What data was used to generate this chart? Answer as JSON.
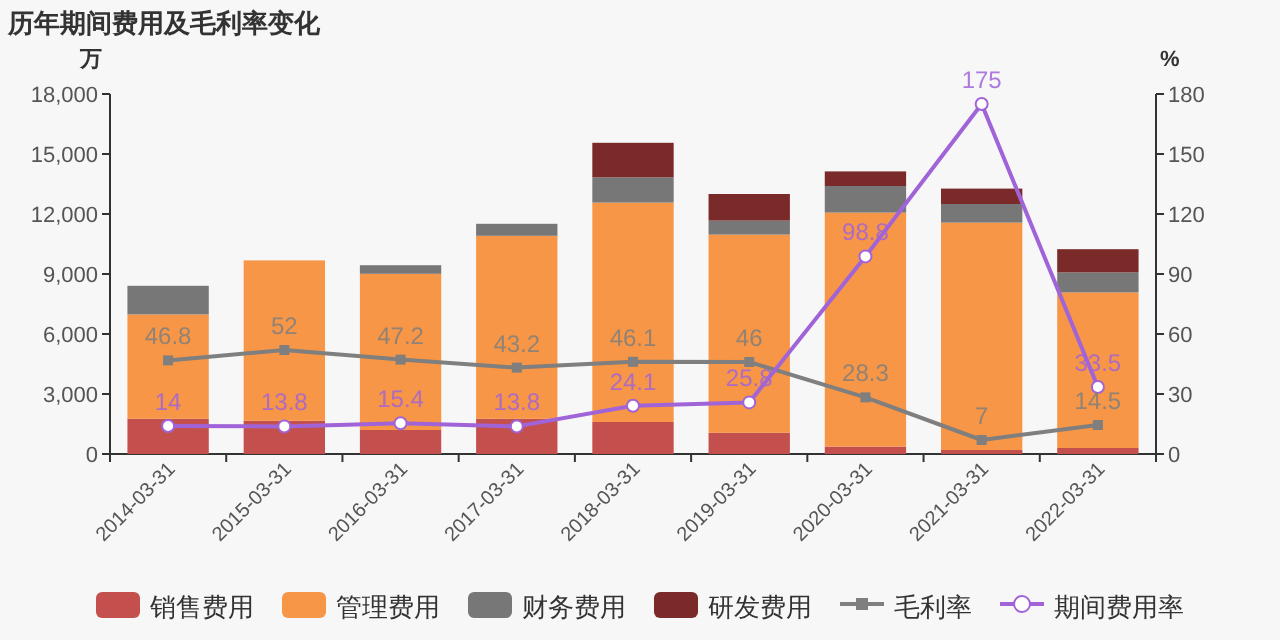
{
  "chart_data": {
    "type": "bar",
    "title": "历年期间费用及毛利率变化",
    "stacked": true,
    "legend": "bottom",
    "ylabel": "万",
    "y2label": "%",
    "categories": [
      "2014-03-31",
      "2015-03-31",
      "2016-03-31",
      "2017-03-31",
      "2018-03-31",
      "2019-03-31",
      "2020-03-31",
      "2021-03-31",
      "2022-03-31"
    ],
    "ylim": [
      0,
      18000
    ],
    "yticks": [
      0,
      {
        "value": 3000,
        "label": "3,000"
      },
      {
        "value": 6000,
        "label": "6,000"
      },
      {
        "value": 9000,
        "label": "9,000"
      },
      {
        "value": 12000,
        "label": "12,000"
      },
      {
        "value": 15000,
        "label": "15,000"
      },
      {
        "value": 18000,
        "label": "18,000"
      }
    ],
    "y2lim": [
      0,
      180
    ],
    "y2ticks": [
      0,
      30,
      60,
      90,
      120,
      150,
      180
    ],
    "series": [
      {
        "name": "销售费用",
        "color": "#c4504e",
        "values": [
          1760,
          1660,
          1200,
          1760,
          1600,
          1060,
          370,
          200,
          300
        ]
      },
      {
        "name": "管理费用",
        "color": "#f79646",
        "values": [
          5220,
          8020,
          7810,
          9150,
          10970,
          9910,
          11700,
          11370,
          7780
        ]
      },
      {
        "name": "财务费用",
        "color": "#777777",
        "values": [
          1430,
          0,
          430,
          600,
          1260,
          700,
          1330,
          930,
          1000
        ]
      },
      {
        "name": "研发费用",
        "color": "#7b2a2a",
        "values": [
          0,
          0,
          0,
          0,
          1730,
          1330,
          730,
          770,
          1160
        ]
      },
      {
        "name": "毛利率",
        "type": "line",
        "axis": "y2",
        "marker": "square",
        "color": "#7f7f7f",
        "values": [
          46.8,
          52,
          47.2,
          43.2,
          46.1,
          46,
          28.3,
          7,
          14.5
        ],
        "value_labels": [
          "46.8",
          "52",
          "47.2",
          "43.2",
          "46.1",
          "46",
          "28.3",
          "7",
          "14.5"
        ]
      },
      {
        "name": "期间费用率",
        "type": "line",
        "axis": "y2",
        "marker": "circle",
        "color": "#a064d8",
        "values": [
          14,
          13.8,
          15.4,
          13.8,
          24.1,
          25.8,
          98.8,
          175,
          33.5
        ],
        "value_labels": [
          "14",
          "13.8",
          "15.4",
          "13.8",
          "24.1",
          "25.8",
          "98.8",
          "175",
          "33.5"
        ]
      }
    ]
  }
}
